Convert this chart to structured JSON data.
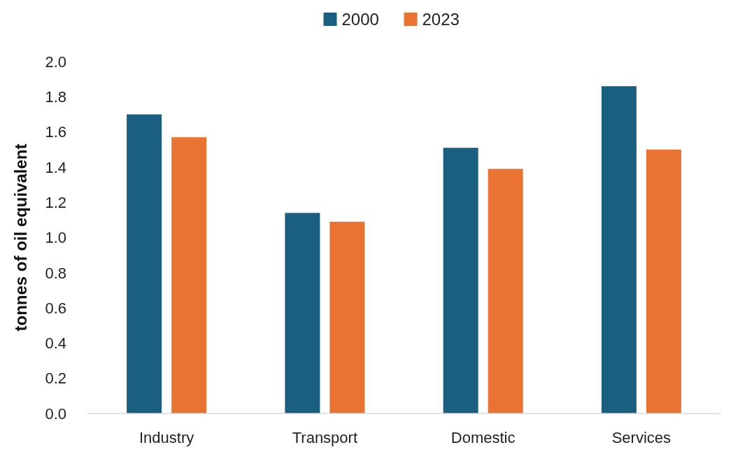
{
  "chart_data": {
    "type": "bar",
    "ylabel": "tonnes of oil equivalent",
    "categories": [
      "Industry",
      "Transport",
      "Domestic",
      "Services"
    ],
    "series": [
      {
        "name": "2000",
        "color": "#1a5e80",
        "values": [
          1.7,
          1.14,
          1.51,
          1.86
        ]
      },
      {
        "name": "2023",
        "color": "#e87332",
        "values": [
          1.57,
          1.09,
          1.39,
          1.5
        ]
      }
    ],
    "ylim": [
      0,
      2
    ],
    "yticks": [
      {
        "value": 0,
        "label": "0.0"
      },
      0.2,
      0.4,
      0.6,
      0.8,
      {
        "value": 1,
        "label": "1.0"
      },
      1.2,
      1.4,
      1.6,
      1.8,
      {
        "value": 2,
        "label": "2.0"
      }
    ],
    "grid": false,
    "legend": "top"
  }
}
